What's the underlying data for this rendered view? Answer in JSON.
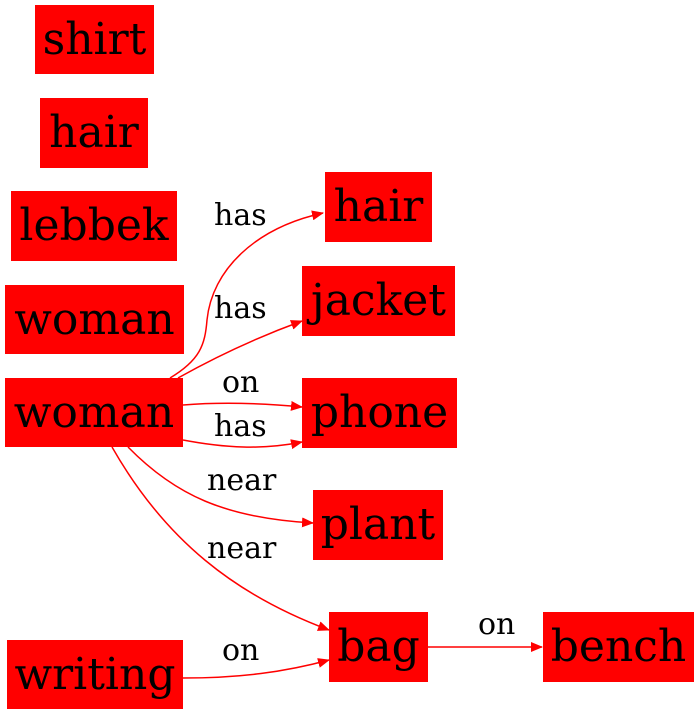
{
  "colors": {
    "node_fill": "#ff0000",
    "edge": "#ff0000",
    "text": "#000000"
  },
  "nodes": {
    "shirt": "shirt",
    "hair1": "hair",
    "lebbek": "lebbek",
    "woman1": "woman",
    "woman2": "woman",
    "writing": "writing",
    "hair2": "hair",
    "jacket": "jacket",
    "phone": "phone",
    "plant": "plant",
    "bag": "bag",
    "bench": "bench"
  },
  "edges": [
    {
      "from": "woman",
      "to": "hair",
      "label": "has"
    },
    {
      "from": "woman",
      "to": "jacket",
      "label": "has"
    },
    {
      "from": "woman",
      "to": "phone",
      "label": "on"
    },
    {
      "from": "woman",
      "to": "phone",
      "label": "has"
    },
    {
      "from": "woman",
      "to": "plant",
      "label": "near"
    },
    {
      "from": "woman",
      "to": "bag",
      "label": "near"
    },
    {
      "from": "writing",
      "to": "bag",
      "label": "on"
    },
    {
      "from": "bag",
      "to": "bench",
      "label": "on"
    }
  ]
}
